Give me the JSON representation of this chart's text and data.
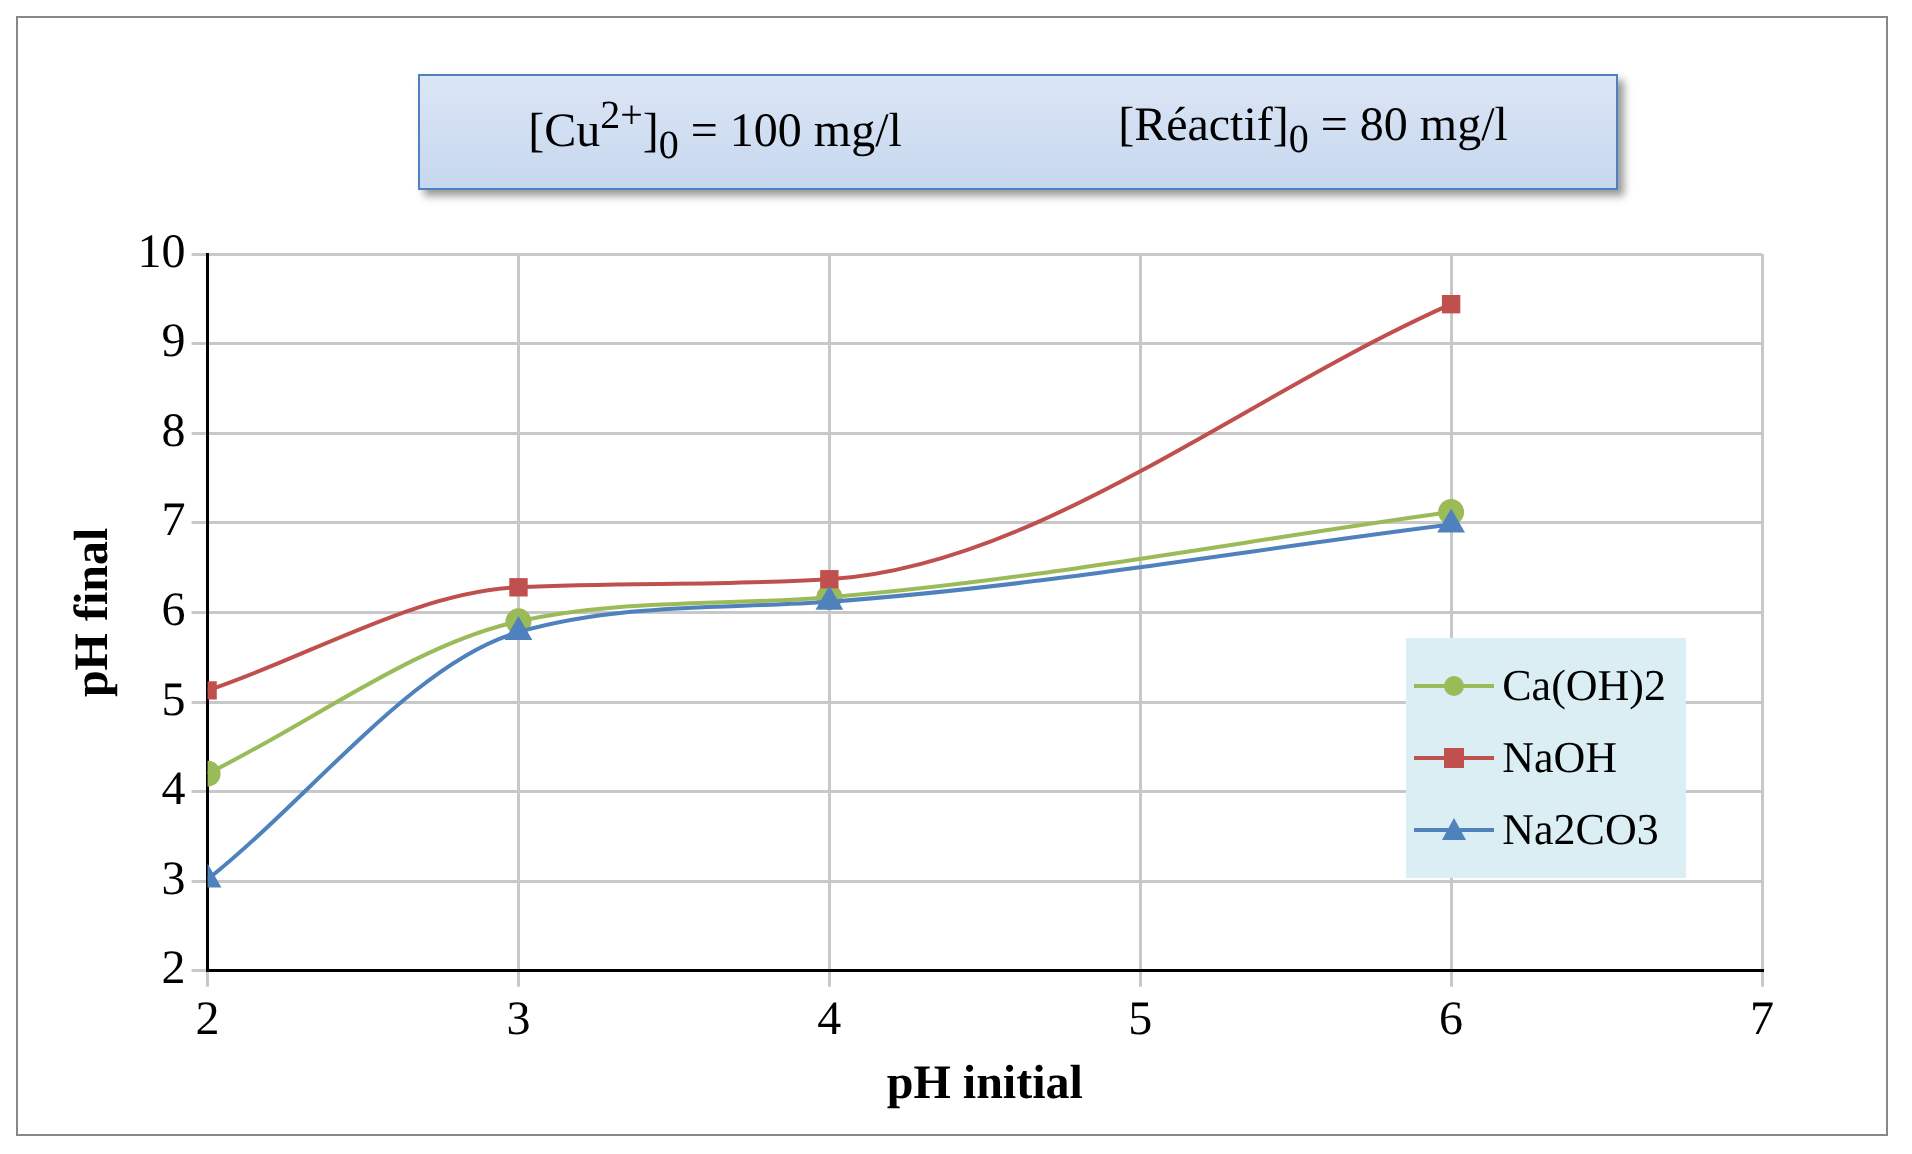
{
  "chart_data": {
    "type": "line",
    "xlabel": "pH initial",
    "ylabel": "pH final",
    "annotations": [
      "[Cu$^{2+}$]$_{0}$ = 100 mg/l",
      "[Réactif]$_{0}$ = 80 mg/l"
    ],
    "x": [
      2,
      3,
      4,
      6
    ],
    "series": [
      {
        "name": "Ca(OH)2",
        "color": "#9bbb59",
        "marker": "circle",
        "values": [
          4.2,
          5.9,
          6.17,
          7.12
        ]
      },
      {
        "name": "NaOH",
        "color": "#c0504d",
        "marker": "square",
        "values": [
          5.13,
          6.28,
          6.37,
          9.44
        ]
      },
      {
        "name": "Na2CO3",
        "color": "#4f81bd",
        "marker": "triangle",
        "values": [
          3.02,
          5.78,
          6.12,
          6.98
        ]
      }
    ],
    "xlim": [
      2,
      7
    ],
    "xticks": [
      2,
      3,
      4,
      5,
      6,
      7
    ],
    "ylim": [
      2,
      10
    ],
    "yticks": [
      2,
      3,
      4,
      5,
      6,
      7,
      8,
      9,
      10
    ],
    "grid": true,
    "legend": "right",
    "line_style": "solid"
  }
}
